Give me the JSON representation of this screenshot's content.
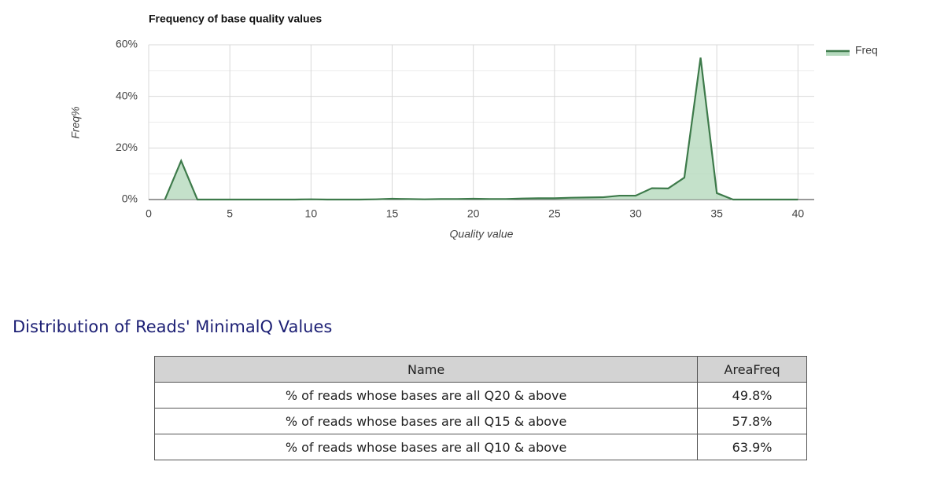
{
  "chart_data": {
    "type": "area",
    "title": "Frequency of base quality values",
    "x_label": "Quality value",
    "y_label": "Freq%",
    "x": [
      1,
      2,
      3,
      4,
      5,
      6,
      7,
      8,
      9,
      10,
      11,
      12,
      13,
      14,
      15,
      16,
      17,
      18,
      19,
      20,
      21,
      22,
      23,
      24,
      25,
      26,
      27,
      28,
      29,
      30,
      31,
      32,
      33,
      34,
      35,
      36,
      37,
      38,
      39,
      40
    ],
    "series": [
      {
        "name": "Freq",
        "color": "#3d7a4a",
        "fill": "#b5d9bd",
        "values": [
          0,
          15,
          0,
          0,
          0,
          0,
          0,
          0,
          0,
          0.1,
          0,
          0,
          0,
          0.1,
          0.3,
          0.2,
          0.1,
          0.2,
          0.2,
          0.3,
          0.2,
          0.2,
          0.4,
          0.5,
          0.5,
          0.7,
          0.8,
          0.9,
          1.5,
          1.5,
          4.4,
          4.3,
          8.5,
          55,
          2.5,
          0,
          0,
          0,
          0,
          0
        ]
      }
    ],
    "xlim": [
      0,
      41
    ],
    "xticks": [
      0,
      5,
      10,
      15,
      20,
      25,
      30,
      35,
      40
    ],
    "ylim": [
      0,
      60
    ],
    "yticks": [
      {
        "value": 0,
        "label": "0%"
      },
      {
        "value": 20,
        "label": "20%"
      },
      {
        "value": 40,
        "label": "40%"
      },
      {
        "value": 60,
        "label": "60%"
      }
    ],
    "yminorticks": [
      10,
      30,
      50
    ],
    "grid": true,
    "legend": "top-right"
  },
  "section": {
    "title": "Distribution of Reads' MinimalQ Values"
  },
  "table": {
    "header": [
      "Name",
      "AreaFreq"
    ],
    "rows": [
      [
        "% of reads whose bases are all Q20 & above",
        "49.8%"
      ],
      [
        "% of reads whose bases are all Q15 & above",
        "57.8%"
      ],
      [
        "% of reads whose bases are all Q10 & above",
        "63.9%"
      ]
    ]
  }
}
